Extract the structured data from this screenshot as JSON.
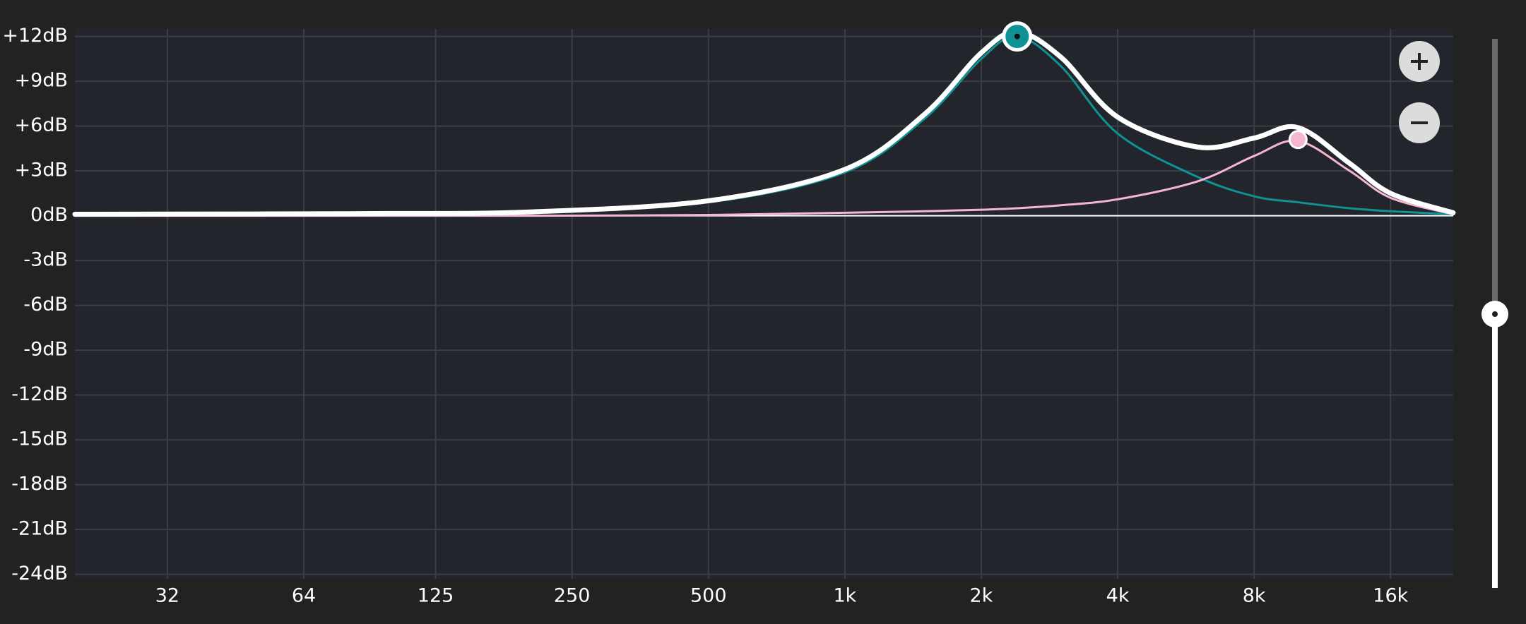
{
  "chart_data": {
    "type": "line",
    "x_scale": "log",
    "xlim": [
      20,
      22000
    ],
    "ylim": [
      -24.3,
      12.5
    ],
    "grid": true,
    "xticks": [
      32,
      64,
      125,
      250,
      500,
      {
        "value": 1000,
        "label": "1k"
      },
      {
        "value": 2000,
        "label": "2k"
      },
      {
        "value": 4000,
        "label": "4k"
      },
      {
        "value": 8000,
        "label": "8k"
      },
      {
        "value": 16000,
        "label": "16k"
      }
    ],
    "yticks": [
      {
        "value": 12,
        "label": "+12dB"
      },
      {
        "value": 9,
        "label": "+9dB"
      },
      {
        "value": 6,
        "label": "+6dB"
      },
      {
        "value": 3,
        "label": "+3dB"
      },
      {
        "value": 0,
        "label": "0dB"
      },
      {
        "value": -3,
        "label": "-3dB"
      },
      {
        "value": -6,
        "label": "-6dB"
      },
      {
        "value": -9,
        "label": "-9dB"
      },
      {
        "value": -12,
        "label": "-12dB"
      },
      {
        "value": -15,
        "label": "-15dB"
      },
      {
        "value": -18,
        "label": "-18dB"
      },
      {
        "value": -21,
        "label": "-21dB"
      },
      {
        "value": -24,
        "label": "-24dB"
      }
    ],
    "x": [
      20,
      50,
      100,
      200,
      500,
      1000,
      1500,
      2000,
      2400,
      3000,
      4000,
      6000,
      8000,
      10000,
      13000,
      16000,
      22000
    ],
    "series": [
      {
        "color": "#0f9294",
        "width": 3,
        "values": [
          0,
          0.02,
          0.05,
          0.2,
          0.9,
          2.9,
          6.5,
          10.5,
          12,
          10,
          5.5,
          2.6,
          1.3,
          0.9,
          0.5,
          0.3,
          0.1
        ]
      },
      {
        "color": "#f4b6d2",
        "width": 3,
        "values": [
          0,
          0,
          0,
          0,
          0.05,
          0.2,
          0.3,
          0.4,
          0.5,
          0.7,
          1.1,
          2.3,
          4,
          5,
          3,
          1.2,
          0.1
        ]
      },
      {
        "color": "#ffffff",
        "width": 7,
        "values": [
          0.1,
          0.12,
          0.15,
          0.25,
          1,
          3.1,
          6.8,
          10.9,
          12.3,
          10.6,
          6.6,
          4.6,
          5.2,
          5.9,
          3.5,
          1.5,
          0.2
        ]
      }
    ],
    "bands": [
      {
        "x": 2400,
        "y": 12,
        "color": "#0f9294"
      },
      {
        "x": 10000,
        "y": 5.1,
        "color": "#f4b6d2"
      }
    ]
  }
}
